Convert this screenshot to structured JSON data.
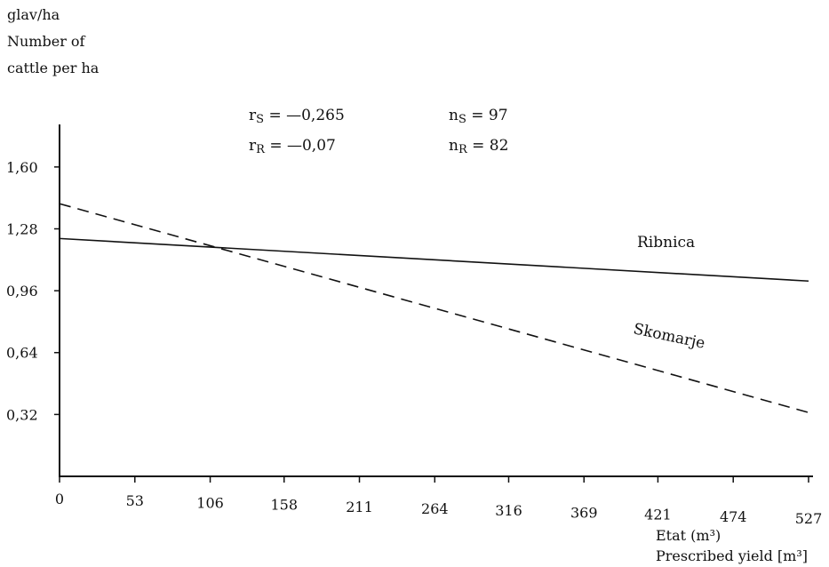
{
  "chart_data": {
    "type": "line",
    "ylabel_lines": [
      "glav/ha",
      "Number of",
      "cattle per ha"
    ],
    "xlabel_lines": [
      "Etat (m³)",
      "Prescribed yield [m³]"
    ],
    "xticks": [
      "0",
      "53",
      "106",
      "158",
      "211",
      "264",
      "316",
      "369",
      "421",
      "474",
      "527"
    ],
    "yticks": [
      "1,60",
      "1,28",
      "0,96",
      "0,64",
      "0,32"
    ],
    "xlim": [
      0,
      527
    ],
    "ylim": [
      0,
      1.82
    ],
    "series": [
      {
        "name": "Ribnica",
        "style": "solid",
        "x": [
          0,
          527
        ],
        "y": [
          1.23,
          1.01
        ]
      },
      {
        "name": "Skomarje",
        "style": "dashed",
        "x": [
          0,
          527
        ],
        "y": [
          1.41,
          0.33
        ]
      }
    ],
    "stats": {
      "rS": {
        "label": "r",
        "sub": "S",
        "value": "= —0,265"
      },
      "rR": {
        "label": "r",
        "sub": "R",
        "value": "= —0,07"
      },
      "nS": {
        "label": "n",
        "sub": "S",
        "value": "= 97"
      },
      "nR": {
        "label": "n",
        "sub": "R",
        "value": "= 82"
      }
    }
  }
}
